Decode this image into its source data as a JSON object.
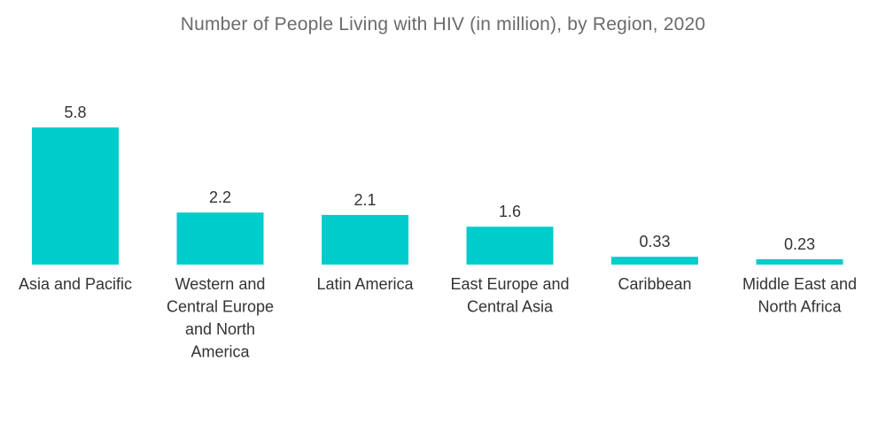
{
  "chart_data": {
    "type": "bar",
    "title": "Number of People Living with HIV (in million), by Region, 2020",
    "xlabel": "",
    "ylabel": "",
    "ylim": [
      0,
      5.8
    ],
    "grid": false,
    "legend": "none",
    "colors": {
      "bar": "#00cccc",
      "text": "#333333",
      "title": "#6b6b6b"
    },
    "categories": [
      [
        "Asia and Pacific"
      ],
      [
        "Western and",
        "Central Europe",
        "and North",
        "America"
      ],
      [
        "Latin America"
      ],
      [
        "East Europe and",
        "Central Asia"
      ],
      [
        "Caribbean"
      ],
      [
        "Middle East and",
        "North Africa"
      ]
    ],
    "values": [
      5.8,
      2.2,
      2.1,
      1.6,
      0.33,
      0.23
    ],
    "value_labels": [
      "5.8",
      "2.2",
      "2.1",
      "1.6",
      "0.33",
      "0.23"
    ]
  }
}
